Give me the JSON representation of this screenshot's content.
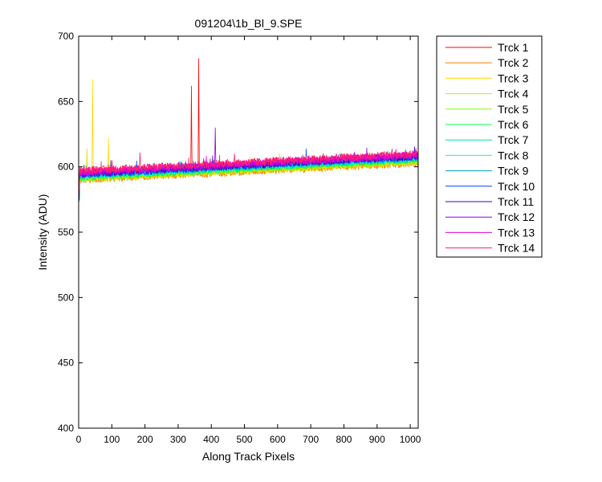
{
  "chart_data": {
    "type": "line",
    "title": "091204\\1b_Bl_9.SPE",
    "xlabel": "Along Track Pixels",
    "ylabel": "Intensity (ADU)",
    "xlim": [
      0,
      1024
    ],
    "ylim": [
      400,
      700
    ],
    "xticks": [
      0,
      100,
      200,
      300,
      400,
      500,
      600,
      700,
      800,
      900,
      1000
    ],
    "yticks": [
      400,
      450,
      500,
      550,
      600,
      650,
      700
    ],
    "grid": false,
    "legend": "outside-right",
    "series": [
      {
        "name": "Trck 1",
        "color": "#ff0000",
        "base_start": 592,
        "base_end": 605,
        "spikes": [
          [
            340,
            662
          ],
          [
            362,
            683
          ]
        ]
      },
      {
        "name": "Trck 2",
        "color": "#ff7f00",
        "base_start": 590,
        "base_end": 603,
        "spikes": []
      },
      {
        "name": "Trck 3",
        "color": "#ffd700",
        "base_start": 591,
        "base_end": 604,
        "spikes": [
          [
            42,
            667
          ],
          [
            90,
            622
          ]
        ]
      },
      {
        "name": "Trck 4",
        "color": "#d4e400",
        "base_start": 591,
        "base_end": 604,
        "spikes": [
          [
            25,
            614
          ]
        ]
      },
      {
        "name": "Trck 5",
        "color": "#7fff00",
        "base_start": 592,
        "base_end": 605,
        "spikes": []
      },
      {
        "name": "Trck 6",
        "color": "#00ff55",
        "base_start": 592,
        "base_end": 606,
        "spikes": []
      },
      {
        "name": "Trck 7",
        "color": "#00e6a0",
        "base_start": 593,
        "base_end": 606,
        "spikes": []
      },
      {
        "name": "Trck 8",
        "color": "#00ffd8",
        "base_start": 593,
        "base_end": 607,
        "spikes": []
      },
      {
        "name": "Trck 9",
        "color": "#00a0c8",
        "base_start": 594,
        "base_end": 607,
        "spikes": []
      },
      {
        "name": "Trck 10",
        "color": "#0040ff",
        "base_start": 594,
        "base_end": 608,
        "spikes": []
      },
      {
        "name": "Trck 11",
        "color": "#3f00c0",
        "base_start": 595,
        "base_end": 608,
        "spikes": []
      },
      {
        "name": "Trck 12",
        "color": "#9400d3",
        "base_start": 595,
        "base_end": 609,
        "spikes": [
          [
            412,
            630
          ]
        ]
      },
      {
        "name": "Trck 13",
        "color": "#e000e0",
        "base_start": 596,
        "base_end": 609,
        "spikes": []
      },
      {
        "name": "Trck 14",
        "color": "#ff1f70",
        "base_start": 597,
        "base_end": 610,
        "spikes": [
          [
            185,
            611
          ],
          [
            470,
            610
          ]
        ]
      }
    ]
  }
}
